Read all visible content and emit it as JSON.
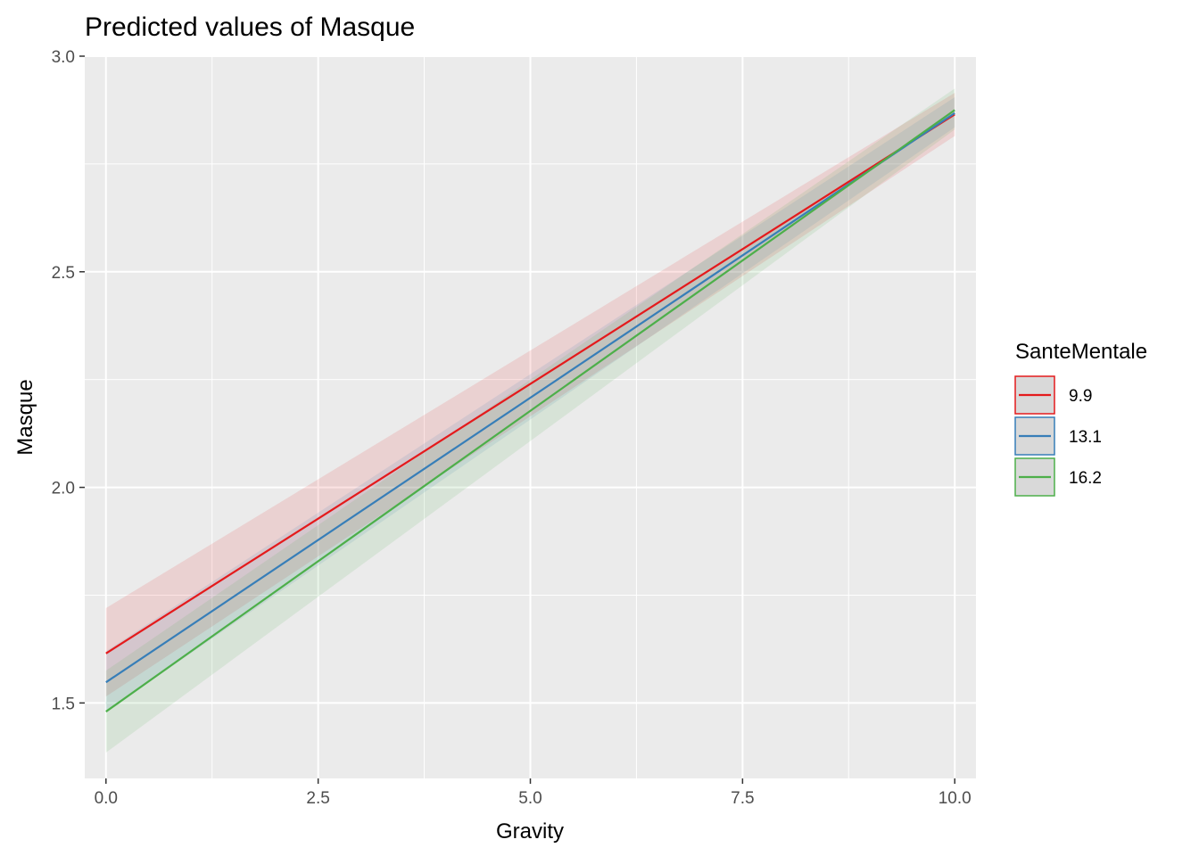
{
  "chart_data": {
    "type": "line",
    "title": "Predicted values of Masque",
    "xlabel": "Gravity",
    "ylabel": "Masque",
    "xlim": [
      -0.25,
      10.25
    ],
    "ylim": [
      1.325,
      3.0
    ],
    "x_ticks": [
      "0.0",
      "2.5",
      "5.0",
      "7.5",
      "10.0"
    ],
    "y_ticks": [
      "1.5",
      "2.0",
      "2.5",
      "3.0"
    ],
    "grid": true,
    "legend": {
      "title": "SanteMentale",
      "position": "right"
    },
    "series": [
      {
        "name": "9.9",
        "color": "#E41A1C",
        "x": [
          0,
          10
        ],
        "y": [
          1.615,
          2.865
        ],
        "ci_low": [
          1.515,
          2.815
        ],
        "ci_high": [
          1.72,
          2.915
        ]
      },
      {
        "name": "13.1",
        "color": "#377EB8",
        "x": [
          0,
          10
        ],
        "y": [
          1.548,
          2.868
        ],
        "ci_low": [
          1.48,
          2.835
        ],
        "ci_high": [
          1.62,
          2.905
        ]
      },
      {
        "name": "16.2",
        "color": "#4DAF4A",
        "x": [
          0,
          10
        ],
        "y": [
          1.48,
          2.875
        ],
        "ci_low": [
          1.385,
          2.83
        ],
        "ci_high": [
          1.575,
          2.925
        ]
      }
    ]
  }
}
